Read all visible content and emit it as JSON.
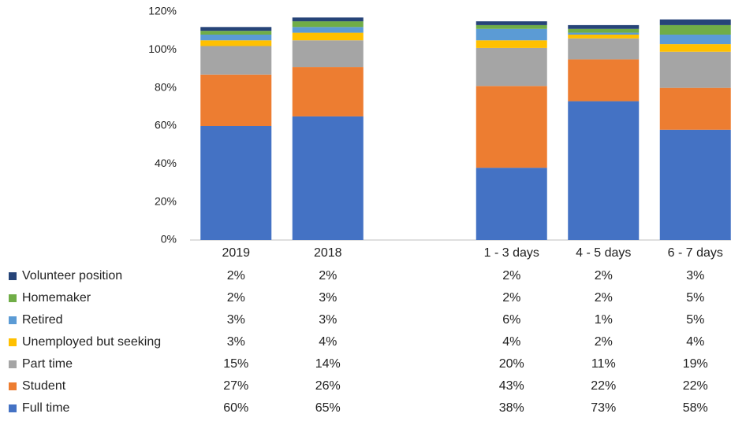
{
  "chart_data": {
    "type": "stacked_bar",
    "categories": [
      "2019",
      "2018",
      null,
      "1 - 3 days",
      "4 - 5 days",
      "6 - 7 days"
    ],
    "series": [
      {
        "name": "Full time",
        "color": "#4472c4",
        "values": [
          60,
          65,
          null,
          38,
          73,
          58
        ],
        "value_labels": [
          "60%",
          "65%",
          null,
          "38%",
          "73%",
          "58%"
        ]
      },
      {
        "name": "Student",
        "color": "#ed7d31",
        "values": [
          27,
          26,
          null,
          43,
          22,
          22
        ],
        "value_labels": [
          "27%",
          "26%",
          null,
          "43%",
          "22%",
          "22%"
        ]
      },
      {
        "name": "Part time",
        "color": "#a5a5a5",
        "values": [
          15,
          14,
          null,
          20,
          11,
          19
        ],
        "value_labels": [
          "15%",
          "14%",
          null,
          "20%",
          "11%",
          "19%"
        ]
      },
      {
        "name": "Unemployed but seeking",
        "color": "#ffc000",
        "values": [
          3,
          4,
          null,
          4,
          2,
          4
        ],
        "value_labels": [
          "3%",
          "4%",
          null,
          "4%",
          "2%",
          "4%"
        ]
      },
      {
        "name": "Retired",
        "color": "#5b9bd5",
        "values": [
          3,
          3,
          null,
          6,
          1,
          5
        ],
        "value_labels": [
          "3%",
          "3%",
          null,
          "6%",
          "1%",
          "5%"
        ]
      },
      {
        "name": "Homemaker",
        "color": "#70ad47",
        "values": [
          2,
          3,
          null,
          2,
          2,
          5
        ],
        "value_labels": [
          "2%",
          "3%",
          null,
          "2%",
          "2%",
          "5%"
        ]
      },
      {
        "name": "Volunteer position",
        "color": "#264478",
        "values": [
          2,
          2,
          null,
          2,
          2,
          3
        ],
        "value_labels": [
          "2%",
          "2%",
          null,
          "2%",
          "2%",
          "3%"
        ]
      }
    ],
    "ylim": [
      0,
      120
    ],
    "yticks": [
      {
        "value": 0,
        "label": "0%"
      },
      {
        "value": 20,
        "label": "20%"
      },
      {
        "value": 40,
        "label": "40%"
      },
      {
        "value": 60,
        "label": "60%"
      },
      {
        "value": 80,
        "label": "80%"
      },
      {
        "value": 100,
        "label": "100%"
      },
      {
        "value": 120,
        "label": "120%"
      }
    ],
    "grid": false
  }
}
